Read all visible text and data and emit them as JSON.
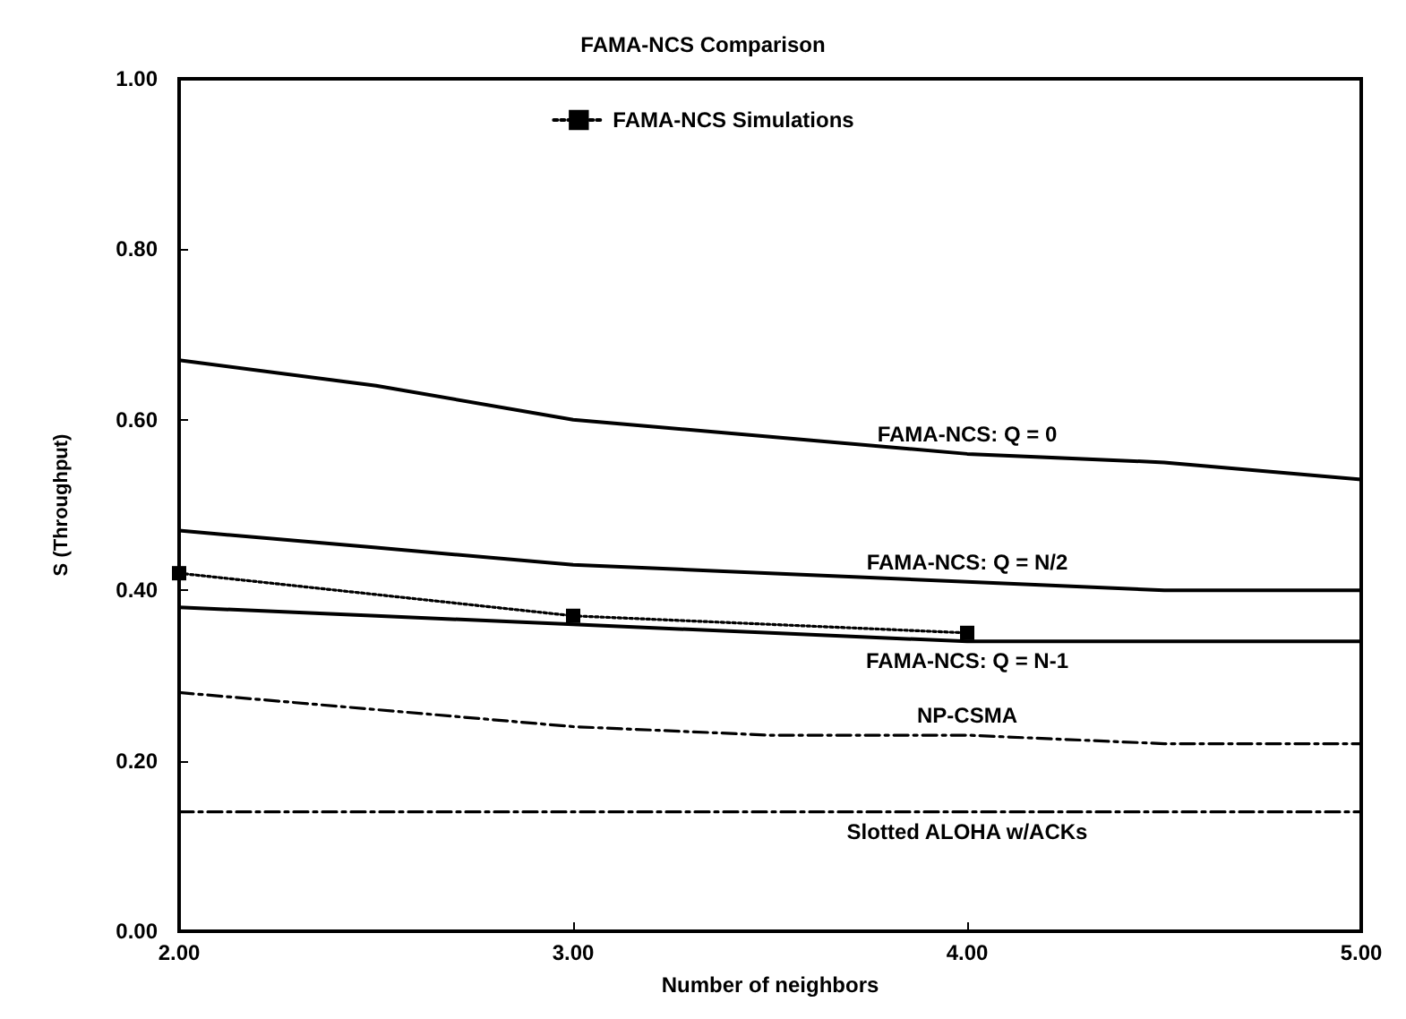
{
  "chart_data": {
    "type": "line",
    "title": "FAMA-NCS Comparison",
    "xlabel": "Number of neighbors",
    "ylabel": "S (Throughput)",
    "x": [
      2,
      2.5,
      3,
      3.5,
      4,
      4.5,
      5
    ],
    "xlim": [
      2,
      5
    ],
    "xticks": [
      {
        "value": 2,
        "label": "2.00"
      },
      {
        "value": 3,
        "label": "3.00"
      },
      {
        "value": 4,
        "label": "4.00"
      },
      {
        "value": 5,
        "label": "5.00"
      }
    ],
    "ylim": [
      0,
      1
    ],
    "yticks": [
      {
        "value": 0,
        "label": "0.00"
      },
      {
        "value": 0.2,
        "label": "0.20"
      },
      {
        "value": 0.4,
        "label": "0.40"
      },
      {
        "value": 0.6,
        "label": "0.60"
      },
      {
        "value": 0.8,
        "label": "0.80"
      },
      {
        "value": 1,
        "label": "1.00"
      }
    ],
    "grid": false,
    "legend": "top",
    "marker": "none",
    "line_style": "solid",
    "series": [
      {
        "name": "FAMA-NCS: Q = 0",
        "color": "#000000",
        "values": [
          0.67,
          0.64,
          0.6,
          0.58,
          0.56,
          0.55,
          0.53
        ]
      },
      {
        "name": "FAMA-NCS: Q = N/2",
        "color": "#000000",
        "values": [
          0.47,
          0.45,
          0.43,
          0.42,
          0.41,
          0.4,
          0.4
        ]
      },
      {
        "name": "FAMA-NCS Simulations",
        "color": "#000000",
        "marker": "square",
        "line_style": "dotted",
        "values": [
          0.42,
          null,
          0.37,
          null,
          0.35,
          null,
          null
        ]
      },
      {
        "name": "FAMA-NCS: Q = N-1",
        "color": "#000000",
        "values": [
          0.38,
          0.37,
          0.36,
          0.35,
          0.34,
          0.34,
          0.34
        ]
      },
      {
        "name": "NP-CSMA",
        "color": "#000000",
        "line_style": "dashed",
        "values": [
          0.28,
          0.26,
          0.24,
          0.23,
          0.23,
          0.22,
          0.22
        ]
      },
      {
        "name": "Slotted ALOHA w/ACKs",
        "color": "#000000",
        "line_style": "dashed",
        "values": [
          0.14,
          0.14,
          0.14,
          0.14,
          0.14,
          0.14,
          0.14
        ]
      }
    ]
  }
}
